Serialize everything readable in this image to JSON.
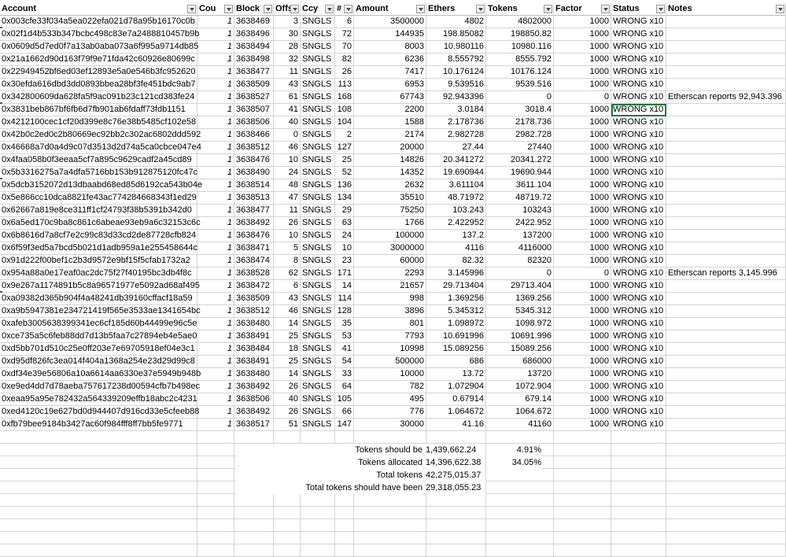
{
  "headers": [
    "Account",
    "Cou",
    "Block",
    "Offs",
    "Ccy",
    "#",
    "Amount",
    "Ethers",
    "Tokens",
    "Factor",
    "Status",
    "Notes"
  ],
  "rows": [
    [
      "0x003cfe33f034a5ea022efa021d78a95b16170c0b",
      "1",
      "3638469",
      "3",
      "SNGLS",
      "6",
      "3500000",
      "4802",
      "4802000",
      "1000",
      "WRONG x10",
      ""
    ],
    [
      "0x02f1d4b533b347bcbc498c83e7a2488810457b9b",
      "1",
      "3638496",
      "30",
      "SNGLS",
      "72",
      "144935",
      "198.85082",
      "198850.82",
      "1000",
      "WRONG x10",
      ""
    ],
    [
      "0x0609d5d7ed0f7a13ab0aba073a6f995a9714db85",
      "1",
      "3638494",
      "28",
      "SNGLS",
      "70",
      "8003",
      "10.980116",
      "10980.116",
      "1000",
      "WRONG x10",
      ""
    ],
    [
      "0x21a1662d90d163f79f9e71fda42c60926e80699c",
      "1",
      "3638498",
      "32",
      "SNGLS",
      "82",
      "6236",
      "8.555792",
      "8555.792",
      "1000",
      "WRONG x10",
      ""
    ],
    [
      "0x22949452bf6ed03ef12893e5a0e546b3fc952620",
      "1",
      "3638477",
      "11",
      "SNGLS",
      "26",
      "7417",
      "10.176124",
      "10176.124",
      "1000",
      "WRONG x10",
      ""
    ],
    [
      "0x30efda616dbd3dd0893bbea28bf3fe451bdc9ab7",
      "1",
      "3638509",
      "43",
      "SNGLS",
      "113",
      "6953",
      "9.539516",
      "9539.516",
      "1000",
      "WRONG x10",
      ""
    ],
    [
      "0x342800609da628fa5f9ac091b23c121cd383fe24",
      "1",
      "3638527",
      "61",
      "SNGLS",
      "168",
      "67743",
      "92.943396",
      "0",
      "0",
      "WRONG x10",
      "Etherscan reports 92,943.396"
    ],
    [
      "0x3831beb867bf6fb6d7fb901ab6fdaff73fdb1151",
      "1",
      "3638507",
      "41",
      "SNGLS",
      "108",
      "2200",
      "3.0184",
      "3018.4",
      "1000",
      "WRONG x10",
      ""
    ],
    [
      "0x4212100cec1cf20d399e8c76e38b5485cf102e58",
      "1",
      "3638506",
      "40",
      "SNGLS",
      "104",
      "1588",
      "2.178736",
      "2178.736",
      "1000",
      "WRONG x10",
      ""
    ],
    [
      "0x42b0c2ed0c2b80669ec92bb2c302ac6802ddd592",
      "1",
      "3638466",
      "0",
      "SNGLS",
      "2",
      "2174",
      "2.982728",
      "2982.728",
      "1000",
      "WRONG x10",
      ""
    ],
    [
      "0x46668a7d0a4d9c07d3513d2d74a5ca0cbce047e4",
      "1",
      "3638512",
      "46",
      "SNGLS",
      "127",
      "20000",
      "27.44",
      "27440",
      "1000",
      "WRONG x10",
      ""
    ],
    [
      "0x4faa058b0f3eeaa5cf7a895c9629cadf2a45cd89",
      "1",
      "3638476",
      "10",
      "SNGLS",
      "25",
      "14826",
      "20.341272",
      "20341.272",
      "1000",
      "WRONG x10",
      ""
    ],
    [
      "0x5b3316275a7a4dfa5716bb153b912875120fc47c",
      "1",
      "3638490",
      "24",
      "SNGLS",
      "52",
      "14352",
      "19.690944",
      "19690.944",
      "1000",
      "WRONG x10",
      ""
    ],
    [
      "0x5dcb3152072d13dbaabd68ed85d6192ca543b04e",
      "1",
      "3638514",
      "48",
      "SNGLS",
      "136",
      "2632",
      "3.611104",
      "3611.104",
      "1000",
      "WRONG x10",
      ""
    ],
    [
      "0x5e866cc10dca8821fe43ac774284668343f1ed29",
      "1",
      "3638513",
      "47",
      "SNGLS",
      "134",
      "35510",
      "48.71972",
      "48719.72",
      "1000",
      "WRONG x10",
      ""
    ],
    [
      "0x62667a819e8ce311ff1cf24793f38b5391b342d0",
      "1",
      "3638477",
      "11",
      "SNGLS",
      "29",
      "75250",
      "103.243",
      "103243",
      "1000",
      "WRONG x10",
      ""
    ],
    [
      "0x6a5ed170c9ba8c861c6abeae93eb9a6c32153c6c",
      "1",
      "3638492",
      "26",
      "SNGLS",
      "63",
      "1766",
      "2.422952",
      "2422.952",
      "1000",
      "WRONG x10",
      ""
    ],
    [
      "0x6b8616d7a8cf7e2c99c83d33cd2de87728cfb824",
      "1",
      "3638476",
      "10",
      "SNGLS",
      "24",
      "100000",
      "137.2",
      "137200",
      "1000",
      "WRONG x10",
      ""
    ],
    [
      "0x6f59f3ed5a7bcd5b021d1adb959a1e255458644c",
      "1",
      "3638471",
      "5",
      "SNGLS",
      "10",
      "3000000",
      "4116",
      "4116000",
      "1000",
      "WRONG x10",
      ""
    ],
    [
      "0x91d222f00bef1c2b3d9572e9bf15f5cfab1732a2",
      "1",
      "3638474",
      "8",
      "SNGLS",
      "23",
      "60000",
      "82.32",
      "82320",
      "1000",
      "WRONG x10",
      ""
    ],
    [
      "0x954a88a0e17eaf0ac2dc75f27f40195bc3db4f8c",
      "1",
      "3638528",
      "62",
      "SNGLS",
      "171",
      "2293",
      "3.145996",
      "0",
      "0",
      "WRONG x10",
      "Etherscan reports 3,145.996"
    ],
    [
      "0x9e267a1174891b5c8a96571977e5092ad68af495",
      "1",
      "3638472",
      "6",
      "SNGLS",
      "14",
      "21657",
      "29.713404",
      "29713.404",
      "1000",
      "WRONG x10",
      ""
    ],
    [
      "0xa09382d365b904f4a48241db39160cffacf18a59",
      "1",
      "3638509",
      "43",
      "SNGLS",
      "114",
      "998",
      "1.369256",
      "1369.256",
      "1000",
      "WRONG x10",
      ""
    ],
    [
      "0xa9b5947381e234721419f565e3533ae1341654bc",
      "1",
      "3638512",
      "46",
      "SNGLS",
      "128",
      "3896",
      "5.345312",
      "5345.312",
      "1000",
      "WRONG x10",
      ""
    ],
    [
      "0xafeb3005638399341ec6cf185d60b44499e96c5e",
      "1",
      "3638480",
      "14",
      "SNGLS",
      "35",
      "801",
      "1.098972",
      "1098.972",
      "1000",
      "WRONG x10",
      ""
    ],
    [
      "0xce735a5c6feb88dd7d13b5faa7c27894eb4e5ae0",
      "1",
      "3638491",
      "25",
      "SNGLS",
      "53",
      "7793",
      "10.691996",
      "10691.996",
      "1000",
      "WRONG x10",
      ""
    ],
    [
      "0xd5bb701d510c25e0ff203e7e69705918ef04e3c1",
      "1",
      "3638484",
      "18",
      "SNGLS",
      "41",
      "10998",
      "15.089256",
      "15089.256",
      "1000",
      "WRONG x10",
      ""
    ],
    [
      "0xd95df826fc3ea014f404a1368a254e23d29d99c8",
      "1",
      "3638491",
      "25",
      "SNGLS",
      "54",
      "500000",
      "686",
      "686000",
      "1000",
      "WRONG x10",
      ""
    ],
    [
      "0xdf34e39e56806a10a6614aa6330e37e5949b948b",
      "1",
      "3638480",
      "14",
      "SNGLS",
      "33",
      "10000",
      "13.72",
      "13720",
      "1000",
      "WRONG x10",
      ""
    ],
    [
      "0xe9ed4dd7d78aeba757617238d00594cfb7b498ec",
      "1",
      "3638492",
      "26",
      "SNGLS",
      "64",
      "782",
      "1.072904",
      "1072.904",
      "1000",
      "WRONG x10",
      ""
    ],
    [
      "0xeaa95a95e782432a564339209effb18abc2c4231",
      "1",
      "3638506",
      "40",
      "SNGLS",
      "105",
      "495",
      "0.67914",
      "679.14",
      "1000",
      "WRONG x10",
      ""
    ],
    [
      "0xed4120c19e627bd0d944407d916cd33e5cfeeb88",
      "1",
      "3638492",
      "26",
      "SNGLS",
      "66",
      "776",
      "1.064672",
      "1064.672",
      "1000",
      "WRONG x10",
      ""
    ],
    [
      "0xfb79bee9184b3427ac60f984fff8ff7bb5fe9771",
      "1",
      "3638517",
      "51",
      "SNGLS",
      "147",
      "30000",
      "41.16",
      "41160",
      "1000",
      "WRONG x10",
      ""
    ]
  ],
  "summary": [
    {
      "label": "Tokens should be",
      "value": "1,439,662.24",
      "pct": "4.91%"
    },
    {
      "label": "Tokens allocated",
      "value": "14,396,622.38",
      "pct": "34.05%"
    },
    {
      "label": "Total tokens",
      "value": "42,275,015.37",
      "pct": ""
    },
    {
      "label": "Total tokens should have been",
      "value": "29,318,055.23",
      "pct": ""
    }
  ]
}
